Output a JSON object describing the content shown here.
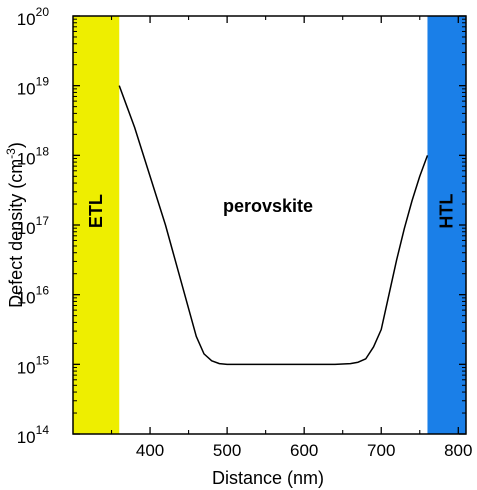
{
  "chart_data": {
    "type": "line",
    "xlabel": "Distance (nm)",
    "ylabel_main": "Defect density (cm",
    "ylabel_sup": "-3",
    "ylabel_close": ")",
    "xlim": [
      300,
      810
    ],
    "ylim_log10": [
      14,
      20
    ],
    "yscale": "log",
    "grid": false,
    "x_ticks": [
      400,
      500,
      600,
      700,
      800
    ],
    "x_tick_labels": [
      "400",
      "500",
      "600",
      "700",
      "800"
    ],
    "y_ticks_log10": [
      14,
      15,
      16,
      17,
      18,
      19,
      20
    ],
    "y_tick_base": "10",
    "y_tick_exponents": [
      "14",
      "15",
      "16",
      "17",
      "18",
      "19",
      "20"
    ],
    "regions": [
      {
        "name": "ETL",
        "x_start": 300,
        "x_end": 360,
        "color": "#eeee00"
      },
      {
        "name": "HTL",
        "x_start": 760,
        "x_end": 810,
        "color": "#1a7fe8"
      }
    ],
    "annotation": "perovskite",
    "series": [
      {
        "x": [
          360,
          370,
          380,
          390,
          400,
          410,
          420,
          430,
          440,
          450,
          460,
          470,
          480,
          490,
          500,
          520,
          540,
          560,
          580,
          600,
          620,
          640,
          660,
          670,
          680,
          690,
          700,
          710,
          720,
          730,
          740,
          750,
          760
        ],
        "y_log10": [
          19.0,
          18.7,
          18.4,
          18.05,
          17.7,
          17.35,
          17.0,
          16.6,
          16.2,
          15.8,
          15.4,
          15.15,
          15.05,
          15.01,
          15.0,
          15.0,
          15.0,
          15.0,
          15.0,
          15.0,
          15.0,
          15.0,
          15.01,
          15.03,
          15.08,
          15.25,
          15.5,
          16.0,
          16.5,
          16.95,
          17.35,
          17.7,
          18.0
        ],
        "color": "#000000"
      }
    ]
  }
}
